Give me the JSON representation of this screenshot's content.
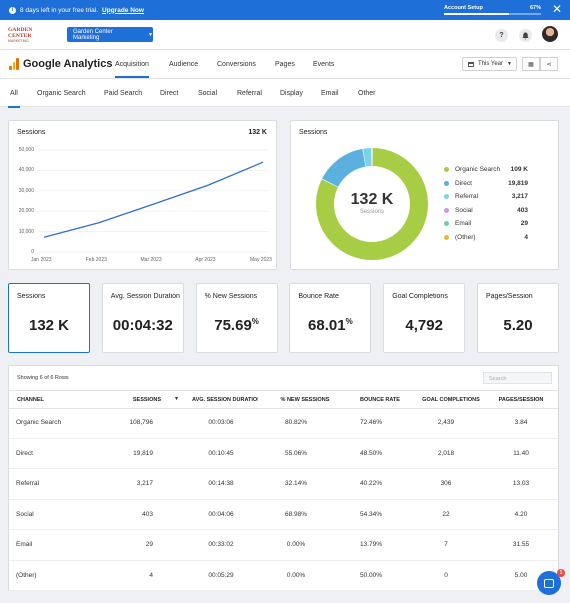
{
  "trial": {
    "text": "8 days left in your free trial.",
    "upgrade_label": "Upgrade Now",
    "account_setup_label": "Account Setup",
    "account_setup_pct": "67%",
    "account_setup_fraction": 0.67
  },
  "header": {
    "logo_top": "GARDEN CENTER",
    "logo_bottom": "MARKETING",
    "account_select": "Garden Center Marketing",
    "help_icon": "?"
  },
  "nav": {
    "title": "Google Analytics",
    "tabs": [
      "Acquisition",
      "Audience",
      "Conversions",
      "Pages",
      "Events"
    ],
    "active_tab": "Acquisition",
    "period": "This Year"
  },
  "channel_tabs": {
    "items": [
      "All",
      "Organic Search",
      "Paid Search",
      "Direct",
      "Social",
      "Referral",
      "Display",
      "Email",
      "Other"
    ],
    "active": "All"
  },
  "sessions_card": {
    "title": "Sessions",
    "total": "132 K"
  },
  "donut_card": {
    "title": "Sessions",
    "center_value": "132 K",
    "center_label": "Sessions"
  },
  "kpis": [
    {
      "label": "Sessions",
      "value": "132 K",
      "suffix": ""
    },
    {
      "label": "Avg. Session Duration",
      "value": "00:04:32",
      "suffix": ""
    },
    {
      "label": "% New Sessions",
      "value": "75.69",
      "suffix": "%"
    },
    {
      "label": "Bounce Rate",
      "value": "68.01",
      "suffix": "%"
    },
    {
      "label": "Goal Completions",
      "value": "4,792",
      "suffix": ""
    },
    {
      "label": "Pages/Session",
      "value": "5.20",
      "suffix": ""
    }
  ],
  "table": {
    "rows_info": "Showing 6 of 6 Rows",
    "search_placeholder": "Search",
    "headers": [
      "Channel",
      "Sessions",
      "Avg. Session Duration",
      "% New Sessions",
      "Bounce Rate",
      "Goal Completions",
      "Pages/Session"
    ],
    "rows": [
      [
        "Organic Search",
        "108,796",
        "00:03:06",
        "80.82%",
        "72.46%",
        "2,439",
        "3.84"
      ],
      [
        "Direct",
        "19,819",
        "00:10:45",
        "55.06%",
        "48.50%",
        "2,018",
        "11.40"
      ],
      [
        "Referral",
        "3,217",
        "00:14:38",
        "32.14%",
        "40.22%",
        "306",
        "13.03"
      ],
      [
        "Social",
        "403",
        "00:04:06",
        "68.98%",
        "54.34%",
        "22",
        "4.20"
      ],
      [
        "Email",
        "29",
        "00:33:02",
        "0.00%",
        "13.79%",
        "7",
        "31.55"
      ],
      [
        "(Other)",
        "4",
        "00:05:29",
        "0.00%",
        "50.00%",
        "0",
        "5.00"
      ]
    ]
  },
  "chat": {
    "badge": "1"
  },
  "colors": {
    "accent": "#1f6fd9",
    "line": "#2f6fd0"
  },
  "chart_data": [
    {
      "type": "line",
      "title": "Sessions",
      "x": [
        "Jan 2023",
        "Feb 2023",
        "Mar 2023",
        "Apr 2023",
        "May 2023"
      ],
      "series": [
        {
          "values": [
            7200,
            14300,
            23500,
            32800,
            44000
          ]
        }
      ],
      "ylim": [
        0,
        50000
      ],
      "yticks": [
        "50,000",
        "40,000",
        "30,000",
        "20,000",
        "10,000",
        "0"
      ],
      "grid": true
    },
    {
      "type": "pie",
      "title": "Sessions",
      "labels": [
        "Organic Search",
        "Direct",
        "Referral",
        "Social",
        "Email",
        "(Other)"
      ],
      "values": [
        109000,
        19819,
        3217,
        403,
        29,
        4
      ],
      "display_values": [
        "109 K",
        "19,819",
        "3,217",
        "403",
        "29",
        "4"
      ],
      "colors": [
        "#a6cd43",
        "#5bb0e0",
        "#78d2e8",
        "#c99ae0",
        "#6ec8b2",
        "#e8b83a"
      ],
      "legend": "right"
    }
  ]
}
